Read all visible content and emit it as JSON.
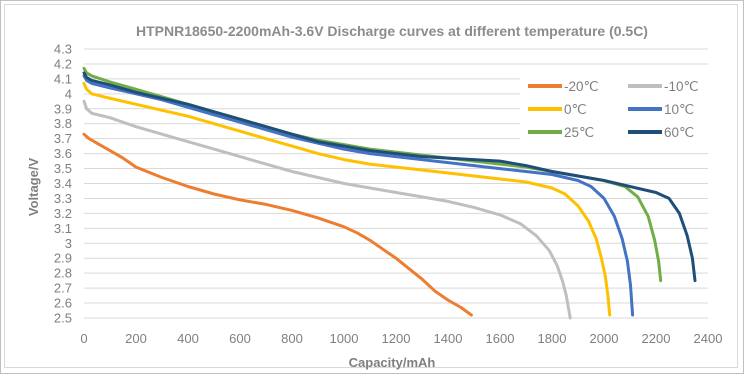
{
  "chart_data": {
    "type": "line",
    "title": "HTPNR18650-2200mAh-3.6V Discharge curves at different temperature (0.5C)",
    "xlabel": "Capacity/mAh",
    "ylabel": "Voltage/V",
    "xlim": [
      0,
      2400
    ],
    "ylim": [
      2.5,
      4.3
    ],
    "x_ticks": [
      "0",
      "200",
      "400",
      "600",
      "800",
      "1000",
      "1200",
      "1400",
      "1600",
      "1800",
      "2000",
      "2200",
      "2400"
    ],
    "y_ticks": [
      "2.5",
      "2.6",
      "2.7",
      "2.8",
      "2.9",
      "3",
      "3.1",
      "3.2",
      "3.3",
      "3.4",
      "3.5",
      "3.6",
      "3.7",
      "3.8",
      "3.9",
      "4",
      "4.1",
      "4.2",
      "4.3"
    ],
    "grid": "horizontal",
    "legend_position": "top-right",
    "series": [
      {
        "name": "-20℃",
        "color": "#ed7d31",
        "points": [
          [
            0,
            3.73
          ],
          [
            20,
            3.7
          ],
          [
            50,
            3.67
          ],
          [
            100,
            3.62
          ],
          [
            150,
            3.57
          ],
          [
            200,
            3.51
          ],
          [
            300,
            3.44
          ],
          [
            400,
            3.38
          ],
          [
            500,
            3.33
          ],
          [
            600,
            3.29
          ],
          [
            700,
            3.26
          ],
          [
            800,
            3.22
          ],
          [
            900,
            3.17
          ],
          [
            1000,
            3.11
          ],
          [
            1050,
            3.07
          ],
          [
            1100,
            3.02
          ],
          [
            1150,
            2.96
          ],
          [
            1200,
            2.9
          ],
          [
            1250,
            2.83
          ],
          [
            1300,
            2.76
          ],
          [
            1350,
            2.68
          ],
          [
            1400,
            2.62
          ],
          [
            1450,
            2.57
          ],
          [
            1490,
            2.52
          ]
        ]
      },
      {
        "name": "-10℃",
        "color": "#bfbfbf",
        "points": [
          [
            0,
            3.95
          ],
          [
            10,
            3.9
          ],
          [
            30,
            3.87
          ],
          [
            100,
            3.84
          ],
          [
            200,
            3.78
          ],
          [
            300,
            3.73
          ],
          [
            400,
            3.68
          ],
          [
            500,
            3.63
          ],
          [
            600,
            3.58
          ],
          [
            700,
            3.53
          ],
          [
            800,
            3.48
          ],
          [
            900,
            3.44
          ],
          [
            1000,
            3.4
          ],
          [
            1100,
            3.37
          ],
          [
            1200,
            3.34
          ],
          [
            1300,
            3.31
          ],
          [
            1400,
            3.28
          ],
          [
            1500,
            3.24
          ],
          [
            1600,
            3.19
          ],
          [
            1680,
            3.13
          ],
          [
            1740,
            3.05
          ],
          [
            1790,
            2.95
          ],
          [
            1820,
            2.85
          ],
          [
            1840,
            2.75
          ],
          [
            1855,
            2.65
          ],
          [
            1865,
            2.55
          ],
          [
            1870,
            2.5
          ]
        ]
      },
      {
        "name": "0℃",
        "color": "#ffc000",
        "points": [
          [
            0,
            4.07
          ],
          [
            10,
            4.03
          ],
          [
            30,
            4.0
          ],
          [
            100,
            3.97
          ],
          [
            200,
            3.93
          ],
          [
            300,
            3.89
          ],
          [
            400,
            3.85
          ],
          [
            500,
            3.8
          ],
          [
            600,
            3.75
          ],
          [
            700,
            3.7
          ],
          [
            800,
            3.65
          ],
          [
            900,
            3.6
          ],
          [
            1000,
            3.56
          ],
          [
            1100,
            3.53
          ],
          [
            1200,
            3.51
          ],
          [
            1300,
            3.49
          ],
          [
            1400,
            3.47
          ],
          [
            1500,
            3.45
          ],
          [
            1600,
            3.43
          ],
          [
            1700,
            3.41
          ],
          [
            1800,
            3.37
          ],
          [
            1850,
            3.33
          ],
          [
            1900,
            3.25
          ],
          [
            1940,
            3.15
          ],
          [
            1970,
            3.03
          ],
          [
            1990,
            2.9
          ],
          [
            2005,
            2.78
          ],
          [
            2015,
            2.65
          ],
          [
            2022,
            2.52
          ]
        ]
      },
      {
        "name": "10℃",
        "color": "#4472c4",
        "points": [
          [
            0,
            4.12
          ],
          [
            10,
            4.09
          ],
          [
            30,
            4.07
          ],
          [
            100,
            4.04
          ],
          [
            200,
            4.0
          ],
          [
            300,
            3.96
          ],
          [
            400,
            3.91
          ],
          [
            500,
            3.86
          ],
          [
            600,
            3.81
          ],
          [
            700,
            3.76
          ],
          [
            800,
            3.71
          ],
          [
            900,
            3.67
          ],
          [
            1000,
            3.63
          ],
          [
            1100,
            3.6
          ],
          [
            1200,
            3.58
          ],
          [
            1300,
            3.56
          ],
          [
            1400,
            3.54
          ],
          [
            1500,
            3.52
          ],
          [
            1600,
            3.5
          ],
          [
            1700,
            3.48
          ],
          [
            1800,
            3.46
          ],
          [
            1900,
            3.42
          ],
          [
            1950,
            3.38
          ],
          [
            2000,
            3.3
          ],
          [
            2040,
            3.18
          ],
          [
            2070,
            3.03
          ],
          [
            2090,
            2.88
          ],
          [
            2102,
            2.72
          ],
          [
            2110,
            2.52
          ]
        ]
      },
      {
        "name": "25℃",
        "color": "#70ad47",
        "points": [
          [
            0,
            4.17
          ],
          [
            10,
            4.14
          ],
          [
            30,
            4.12
          ],
          [
            100,
            4.08
          ],
          [
            200,
            4.03
          ],
          [
            300,
            3.98
          ],
          [
            400,
            3.93
          ],
          [
            500,
            3.88
          ],
          [
            600,
            3.83
          ],
          [
            700,
            3.78
          ],
          [
            800,
            3.73
          ],
          [
            900,
            3.69
          ],
          [
            1000,
            3.66
          ],
          [
            1100,
            3.63
          ],
          [
            1200,
            3.61
          ],
          [
            1300,
            3.59
          ],
          [
            1400,
            3.57
          ],
          [
            1500,
            3.55
          ],
          [
            1600,
            3.53
          ],
          [
            1700,
            3.51
          ],
          [
            1800,
            3.48
          ],
          [
            1900,
            3.45
          ],
          [
            2000,
            3.42
          ],
          [
            2080,
            3.38
          ],
          [
            2130,
            3.31
          ],
          [
            2170,
            3.18
          ],
          [
            2195,
            3.02
          ],
          [
            2210,
            2.88
          ],
          [
            2218,
            2.75
          ]
        ]
      },
      {
        "name": "60℃",
        "color": "#1f4e79",
        "points": [
          [
            0,
            4.14
          ],
          [
            10,
            4.11
          ],
          [
            30,
            4.09
          ],
          [
            100,
            4.06
          ],
          [
            200,
            4.01
          ],
          [
            300,
            3.97
          ],
          [
            400,
            3.93
          ],
          [
            500,
            3.88
          ],
          [
            600,
            3.83
          ],
          [
            700,
            3.78
          ],
          [
            800,
            3.73
          ],
          [
            900,
            3.68
          ],
          [
            1000,
            3.65
          ],
          [
            1100,
            3.62
          ],
          [
            1200,
            3.6
          ],
          [
            1300,
            3.58
          ],
          [
            1400,
            3.57
          ],
          [
            1500,
            3.56
          ],
          [
            1600,
            3.55
          ],
          [
            1700,
            3.52
          ],
          [
            1800,
            3.48
          ],
          [
            1900,
            3.45
          ],
          [
            2000,
            3.42
          ],
          [
            2100,
            3.38
          ],
          [
            2200,
            3.34
          ],
          [
            2250,
            3.3
          ],
          [
            2290,
            3.2
          ],
          [
            2320,
            3.05
          ],
          [
            2340,
            2.9
          ],
          [
            2350,
            2.75
          ]
        ]
      }
    ]
  }
}
